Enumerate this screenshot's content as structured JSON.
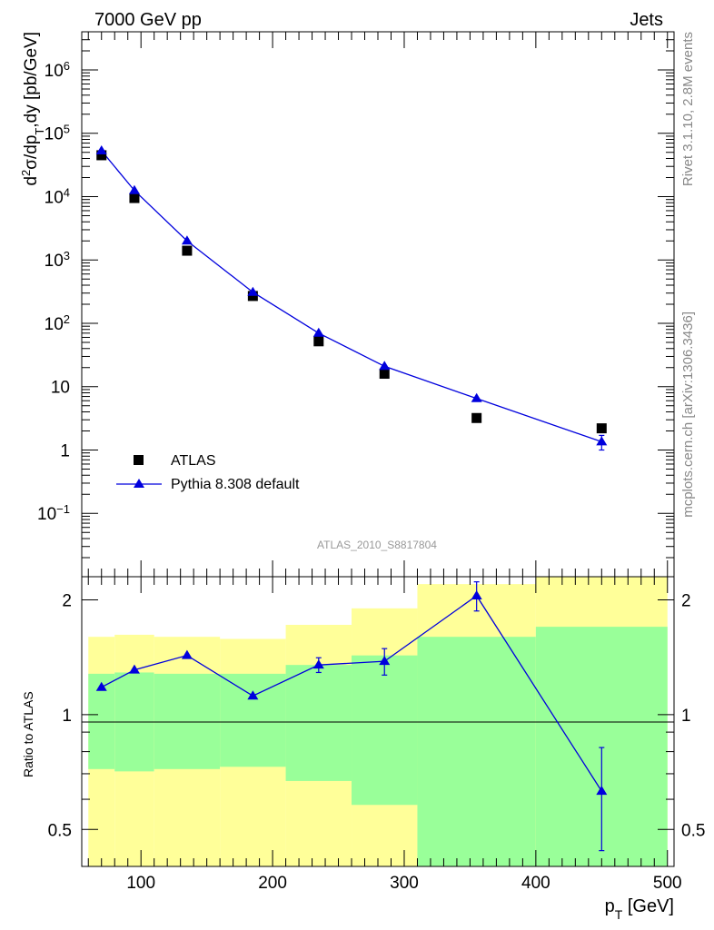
{
  "header": {
    "left": "7000 GeV pp",
    "right": "Jets"
  },
  "side_labels": {
    "rivet": "Rivet 3.1.10,  2.8M events",
    "mcplots": "mcplots.cern.ch [arXiv:1306.3436]"
  },
  "watermark": "ATLAS_2010_S8817804",
  "legend": {
    "data_label": "ATLAS",
    "mc_label": "Pythia 8.308 default"
  },
  "colors": {
    "data": "#000000",
    "mc": "#0000dd",
    "band_outer": "#ffff99",
    "band_inner": "#99ff99"
  },
  "chart_data": [
    {
      "type": "scatter",
      "panel": "main",
      "ylabel": "d²σ/dp_T,dy [pb/GeV]",
      "yscale": "log",
      "ylim": [
        0.01,
        4000000
      ],
      "xlim": [
        55,
        505
      ],
      "y_ticks": [
        {
          "value": 0.1,
          "base": "10",
          "exp": "−1"
        },
        {
          "value": 1,
          "base": "1",
          "exp": ""
        },
        {
          "value": 10,
          "base": "10",
          "exp": ""
        },
        {
          "value": 100,
          "base": "10",
          "exp": "2"
        },
        {
          "value": 1000,
          "base": "10",
          "exp": "3"
        },
        {
          "value": 10000,
          "base": "10",
          "exp": "4"
        },
        {
          "value": 100000,
          "base": "10",
          "exp": "5"
        },
        {
          "value": 1000000,
          "base": "10",
          "exp": "6"
        }
      ],
      "series": [
        {
          "name": "ATLAS",
          "x": [
            70,
            95,
            135,
            185,
            235,
            285,
            355,
            450
          ],
          "y": [
            45000,
            9500,
            1400,
            270,
            52,
            16,
            3.2,
            2.2
          ]
        },
        {
          "name": "Pythia 8.308 default",
          "x": [
            70,
            95,
            135,
            185,
            235,
            285,
            355,
            450
          ],
          "y": [
            53000,
            12500,
            2000,
            310,
            70,
            21,
            6.5,
            1.35
          ],
          "err": [
            0,
            0,
            0,
            0,
            0,
            0,
            0,
            0.35
          ]
        }
      ]
    },
    {
      "type": "line",
      "panel": "ratio",
      "ylabel": "Ratio to ATLAS",
      "xlabel": "p_T [GeV]",
      "yscale": "log",
      "ylim": [
        0.4,
        2.3
      ],
      "xlim": [
        55,
        505
      ],
      "x_ticks": [
        100,
        200,
        300,
        400,
        500
      ],
      "y_ticks": [
        "0.5",
        "1",
        "2"
      ],
      "series": [
        {
          "name": "Pythia 8.308 default",
          "x": [
            70,
            95,
            135,
            185,
            235,
            285,
            355,
            450
          ],
          "y": [
            1.18,
            1.31,
            1.43,
            1.12,
            1.35,
            1.38,
            2.05,
            0.63
          ],
          "err": [
            0,
            0,
            0,
            0,
            0.06,
            0.11,
            0.18,
            0.19
          ]
        }
      ],
      "bands": [
        {
          "x0": 60,
          "x1": 80,
          "outer": [
            0.38,
            1.6
          ],
          "inner": [
            0.72,
            1.28
          ]
        },
        {
          "x0": 80,
          "x1": 110,
          "outer": [
            0.38,
            1.62
          ],
          "inner": [
            0.71,
            1.29
          ]
        },
        {
          "x0": 110,
          "x1": 160,
          "outer": [
            0.38,
            1.6
          ],
          "inner": [
            0.72,
            1.28
          ]
        },
        {
          "x0": 160,
          "x1": 210,
          "outer": [
            0.4,
            1.58
          ],
          "inner": [
            0.73,
            1.28
          ]
        },
        {
          "x0": 210,
          "x1": 260,
          "outer": [
            0.38,
            1.72
          ],
          "inner": [
            0.67,
            1.35
          ]
        },
        {
          "x0": 260,
          "x1": 310,
          "outer": [
            0.38,
            1.9
          ],
          "inner": [
            0.58,
            1.43
          ]
        },
        {
          "x0": 310,
          "x1": 400,
          "outer": [
            0.38,
            2.2
          ],
          "inner": [
            0.39,
            1.6
          ]
        },
        {
          "x0": 400,
          "x1": 500,
          "outer": [
            0.38,
            2.3
          ],
          "inner": [
            0.38,
            1.7
          ]
        }
      ]
    }
  ]
}
